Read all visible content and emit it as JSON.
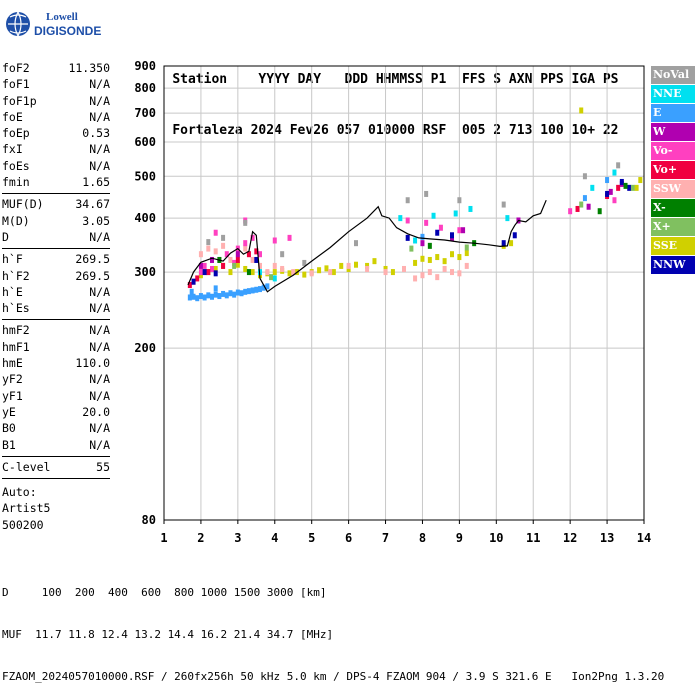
{
  "logo": {
    "line1": "Lowell",
    "line2": "DIGISONDE",
    "color": "#1e4fa8"
  },
  "header": {
    "labels": [
      "Station",
      "YYYY",
      "DAY",
      "DDD",
      "HHMMSS",
      "P1",
      "FFS",
      "S",
      "AXN",
      "PPS",
      "IGA",
      "PS"
    ],
    "values": [
      "Fortaleza",
      "2024",
      "Fev26",
      "057",
      "010000",
      "RSF",
      "005",
      "2",
      "713",
      "100",
      "10+",
      "22"
    ]
  },
  "params": {
    "group1": [
      {
        "label": "foF2",
        "value": "11.350"
      },
      {
        "label": "foF1",
        "value": "N/A"
      },
      {
        "label": "foF1p",
        "value": "N/A"
      },
      {
        "label": "foE",
        "value": "N/A"
      },
      {
        "label": "foEp",
        "value": "0.53"
      },
      {
        "label": "fxI",
        "value": "N/A"
      },
      {
        "label": "foEs",
        "value": "N/A"
      },
      {
        "label": "fmin",
        "value": "1.65"
      }
    ],
    "group2": [
      {
        "label": "MUF(D)",
        "value": "34.67"
      },
      {
        "label": "M(D)",
        "value": "3.05"
      },
      {
        "label": "D",
        "value": "N/A"
      }
    ],
    "group3": [
      {
        "label": "h`F",
        "value": "269.5"
      },
      {
        "label": "h`F2",
        "value": "269.5"
      },
      {
        "label": "h`E",
        "value": "N/A"
      },
      {
        "label": "h`Es",
        "value": "N/A"
      }
    ],
    "group4": [
      {
        "label": "hmF2",
        "value": "N/A"
      },
      {
        "label": "hmF1",
        "value": "N/A"
      },
      {
        "label": "hmE",
        "value": "110.0"
      },
      {
        "label": "yF2",
        "value": "N/A"
      },
      {
        "label": "yF1",
        "value": "N/A"
      },
      {
        "label": "yE",
        "value": "20.0"
      },
      {
        "label": "B0",
        "value": "N/A"
      },
      {
        "label": "B1",
        "value": "N/A"
      }
    ],
    "group5": [
      {
        "label": "C-level",
        "value": "55"
      }
    ]
  },
  "auto": {
    "line1": "Auto:",
    "line2": "Artist5",
    "line3": "500200"
  },
  "legend": [
    {
      "label": "NoVal",
      "color": "#a0a0a0"
    },
    {
      "label": "NNE",
      "color": "#00e0f0"
    },
    {
      "label": "E",
      "color": "#3aa0ff"
    },
    {
      "label": "W",
      "color": "#b000b0"
    },
    {
      "label": "Vo-",
      "color": "#ff40c0"
    },
    {
      "label": "Vo+",
      "color": "#f00040"
    },
    {
      "label": "SSW",
      "color": "#ffb0b0"
    },
    {
      "label": "X-",
      "color": "#008000"
    },
    {
      "label": "X+",
      "color": "#80c060"
    },
    {
      "label": "SSE",
      "color": "#d0d000"
    },
    {
      "label": "NNW",
      "color": "#0000b0"
    }
  ],
  "footer": {
    "line1": "D     100  200  400  600  800 1000 1500 3000 [km]",
    "line2": "MUF  11.7 11.8 12.4 13.2 14.4 16.2 21.4 34.7 [MHz]",
    "line3": "FZAOM_2024057010000.RSF / 260fx256h 50 kHz 5.0 km / DPS-4 FZAOM 904 / 3.9 S 321.6 E   Ion2Png 1.3.20"
  },
  "chart_data": {
    "type": "scatter",
    "title": "",
    "xlabel": "",
    "ylabel": "",
    "xlim": [
      1,
      14
    ],
    "ylim": [
      80,
      900
    ],
    "x_ticks": [
      1,
      2,
      3,
      4,
      5,
      6,
      7,
      8,
      9,
      10,
      11,
      12,
      13,
      14
    ],
    "y_ticks": [
      80,
      200,
      300,
      400,
      500,
      600,
      700,
      800,
      900
    ],
    "y_scale": "log",
    "grid": true,
    "trace": {
      "name": "",
      "color": "#000000",
      "x": [
        1.65,
        1.8,
        2.0,
        2.3,
        2.6,
        2.8,
        3.0,
        3.15,
        3.3,
        3.4,
        3.5,
        3.6,
        3.8,
        4.0,
        4.5,
        5.0,
        5.5,
        6.0,
        6.5,
        6.8,
        6.9,
        7.1,
        7.3,
        7.6,
        7.9,
        8.2,
        8.6,
        9.0,
        9.4,
        9.8,
        10.1,
        10.3,
        10.4,
        10.5,
        10.6,
        10.8,
        11.0,
        11.2,
        11.35
      ],
      "y": [
        280,
        300,
        316,
        323,
        318,
        332,
        340,
        330,
        335,
        372,
        365,
        290,
        270,
        278,
        295,
        318,
        342,
        372,
        400,
        425,
        405,
        400,
        380,
        368,
        360,
        358,
        356,
        352,
        350,
        347,
        344,
        345,
        372,
        385,
        395,
        392,
        405,
        410,
        440
      ]
    },
    "scatter_series": [
      {
        "color": "#3aa0ff",
        "points": [
          [
            1.7,
            262
          ],
          [
            1.8,
            263
          ],
          [
            1.9,
            261
          ],
          [
            2.0,
            264
          ],
          [
            2.1,
            262
          ],
          [
            2.2,
            265
          ],
          [
            2.3,
            263
          ],
          [
            2.4,
            266
          ],
          [
            2.5,
            264
          ],
          [
            2.6,
            267
          ],
          [
            2.7,
            265
          ],
          [
            2.8,
            268
          ],
          [
            2.9,
            266
          ],
          [
            3.0,
            269
          ],
          [
            3.1,
            268
          ],
          [
            3.2,
            270
          ],
          [
            3.3,
            271
          ],
          [
            3.4,
            272
          ],
          [
            3.5,
            273
          ],
          [
            3.6,
            274
          ],
          [
            3.7,
            276
          ],
          [
            3.8,
            278
          ]
        ]
      },
      {
        "color": "#d0d000",
        "points": [
          [
            2.0,
            295
          ],
          [
            2.2,
            300
          ],
          [
            2.4,
            305
          ],
          [
            2.6,
            310
          ],
          [
            2.8,
            300
          ],
          [
            3.0,
            312
          ],
          [
            3.2,
            305
          ],
          [
            3.4,
            300
          ],
          [
            3.6,
            295
          ],
          [
            3.8,
            298
          ],
          [
            4.0,
            300
          ],
          [
            4.2,
            302
          ],
          [
            4.4,
            298
          ],
          [
            4.6,
            300
          ],
          [
            4.8,
            296
          ],
          [
            5.0,
            300
          ],
          [
            5.2,
            303
          ],
          [
            5.4,
            306
          ],
          [
            5.6,
            300
          ],
          [
            5.8,
            310
          ],
          [
            6.0,
            305
          ],
          [
            6.2,
            312
          ],
          [
            6.5,
            310
          ],
          [
            6.7,
            318
          ],
          [
            7.0,
            305
          ],
          [
            7.2,
            300
          ],
          [
            7.8,
            315
          ],
          [
            8.0,
            322
          ],
          [
            8.2,
            320
          ],
          [
            8.4,
            325
          ],
          [
            8.6,
            318
          ],
          [
            8.8,
            330
          ],
          [
            9.0,
            325
          ],
          [
            9.2,
            332
          ],
          [
            10.2,
            345
          ],
          [
            10.4,
            350
          ]
        ]
      },
      {
        "color": "#ffb0b0",
        "points": [
          [
            2.0,
            330
          ],
          [
            2.2,
            340
          ],
          [
            2.4,
            335
          ],
          [
            2.6,
            345
          ],
          [
            2.8,
            320
          ],
          [
            3.0,
            330
          ],
          [
            3.2,
            340
          ],
          [
            3.4,
            320
          ],
          [
            3.6,
            310
          ],
          [
            3.8,
            300
          ],
          [
            4.0,
            310
          ],
          [
            4.2,
            305
          ],
          [
            4.5,
            300
          ],
          [
            5.0,
            298
          ],
          [
            5.5,
            300
          ],
          [
            6.0,
            310
          ],
          [
            6.5,
            305
          ],
          [
            7.0,
            300
          ],
          [
            7.5,
            305
          ],
          [
            7.8,
            290
          ],
          [
            8.0,
            295
          ],
          [
            8.2,
            300
          ],
          [
            8.4,
            292
          ],
          [
            8.6,
            305
          ],
          [
            8.8,
            300
          ],
          [
            9.0,
            298
          ],
          [
            9.2,
            310
          ]
        ]
      },
      {
        "color": "#ff40c0",
        "points": [
          [
            1.8,
            285
          ],
          [
            2.0,
            300
          ],
          [
            2.1,
            310
          ],
          [
            2.3,
            305
          ],
          [
            2.5,
            320
          ],
          [
            2.7,
            330
          ],
          [
            2.9,
            315
          ],
          [
            3.0,
            340
          ],
          [
            3.2,
            350
          ],
          [
            3.4,
            360
          ],
          [
            3.6,
            330
          ],
          [
            3.2,
            395
          ],
          [
            2.4,
            370
          ],
          [
            4.0,
            355
          ],
          [
            4.4,
            360
          ],
          [
            7.6,
            395
          ],
          [
            8.1,
            390
          ],
          [
            8.5,
            380
          ],
          [
            9.0,
            375
          ],
          [
            12.0,
            415
          ],
          [
            13.2,
            440
          ]
        ]
      },
      {
        "color": "#f00040",
        "points": [
          [
            1.7,
            280
          ],
          [
            1.9,
            290
          ],
          [
            2.2,
            300
          ],
          [
            2.6,
            310
          ],
          [
            3.0,
            320
          ],
          [
            3.3,
            330
          ],
          [
            3.5,
            335
          ],
          [
            12.2,
            420
          ],
          [
            13.0,
            450
          ],
          [
            13.3,
            470
          ]
        ]
      },
      {
        "color": "#b000b0",
        "points": [
          [
            2.0,
            310
          ],
          [
            2.3,
            320
          ],
          [
            3.0,
            330
          ],
          [
            8.0,
            350
          ],
          [
            8.8,
            360
          ],
          [
            9.1,
            375
          ],
          [
            10.6,
            395
          ],
          [
            12.5,
            425
          ],
          [
            13.1,
            460
          ],
          [
            13.4,
            480
          ]
        ]
      },
      {
        "color": "#00e0f0",
        "points": [
          [
            3.6,
            300
          ],
          [
            4.0,
            290
          ],
          [
            7.4,
            400
          ],
          [
            7.8,
            355
          ],
          [
            8.3,
            405
          ],
          [
            8.9,
            410
          ],
          [
            9.3,
            420
          ],
          [
            10.3,
            400
          ],
          [
            12.6,
            470
          ],
          [
            13.2,
            510
          ]
        ]
      },
      {
        "color": "#0000b0",
        "points": [
          [
            1.8,
            285
          ],
          [
            2.1,
            300
          ],
          [
            2.4,
            298
          ],
          [
            3.5,
            320
          ],
          [
            7.6,
            360
          ],
          [
            8.4,
            370
          ],
          [
            8.8,
            365
          ],
          [
            10.2,
            350
          ],
          [
            10.5,
            365
          ],
          [
            13.0,
            455
          ],
          [
            13.4,
            485
          ],
          [
            13.6,
            470
          ]
        ]
      },
      {
        "color": "#a0a0a0",
        "points": [
          [
            2.2,
            352
          ],
          [
            2.6,
            360
          ],
          [
            3.2,
            390
          ],
          [
            4.2,
            330
          ],
          [
            4.8,
            315
          ],
          [
            6.2,
            350
          ],
          [
            7.6,
            440
          ],
          [
            8.1,
            455
          ],
          [
            9.0,
            440
          ],
          [
            10.2,
            430
          ],
          [
            12.4,
            500
          ],
          [
            13.3,
            530
          ]
        ]
      },
      {
        "color": "#008000",
        "points": [
          [
            2.5,
            320
          ],
          [
            3.3,
            300
          ],
          [
            8.2,
            345
          ],
          [
            9.4,
            350
          ],
          [
            12.8,
            415
          ],
          [
            13.5,
            475
          ]
        ]
      },
      {
        "color": "#80c060",
        "points": [
          [
            2.9,
            310
          ],
          [
            3.9,
            292
          ],
          [
            7.7,
            340
          ],
          [
            9.2,
            342
          ],
          [
            12.3,
            430
          ],
          [
            13.7,
            470
          ]
        ]
      },
      {
        "color": "#3aa0ff",
        "points": [
          [
            1.75,
            270
          ],
          [
            2.4,
            275
          ],
          [
            8.0,
            362
          ],
          [
            12.4,
            445
          ],
          [
            13.0,
            490
          ]
        ]
      },
      {
        "color": "#d0d000",
        "points": [
          [
            12.3,
            710
          ],
          [
            13.8,
            470
          ],
          [
            13.9,
            490
          ]
        ]
      }
    ]
  }
}
